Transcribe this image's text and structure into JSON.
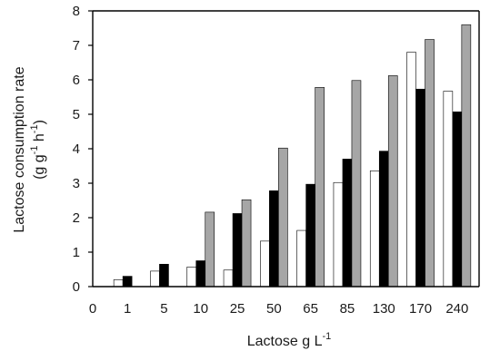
{
  "chart_data": {
    "type": "bar",
    "title": "",
    "xlabel": "Lactose g L",
    "xlabel_sup": "-1",
    "ylabel_line1": "Lactose consumption rate",
    "ylabel_line2_a": "(g g",
    "ylabel_line2_sup1": "-1",
    "ylabel_line2_b": " h",
    "ylabel_line2_sup2": "-1",
    "ylabel_line2_c": ")",
    "x_origin_label": "0",
    "categories": [
      "1",
      "5",
      "10",
      "25",
      "50",
      "65",
      "85",
      "130",
      "170",
      "240"
    ],
    "ylim": [
      0,
      8
    ],
    "yticks": [
      0,
      1,
      2,
      3,
      4,
      5,
      6,
      7,
      8
    ],
    "grid": false,
    "series": [
      {
        "color": "#ffffff",
        "values": [
          0.2,
          0.45,
          0.57,
          0.48,
          1.32,
          1.63,
          3.02,
          3.36,
          6.8,
          5.67
        ]
      },
      {
        "color": "#000000",
        "values": [
          0.3,
          0.65,
          0.75,
          2.12,
          2.78,
          2.97,
          3.7,
          3.93,
          5.73,
          5.07
        ]
      },
      {
        "color": "#a6a6a6",
        "values": [
          null,
          null,
          2.16,
          2.52,
          4.02,
          5.78,
          5.98,
          6.12,
          7.17,
          7.6
        ]
      }
    ]
  }
}
